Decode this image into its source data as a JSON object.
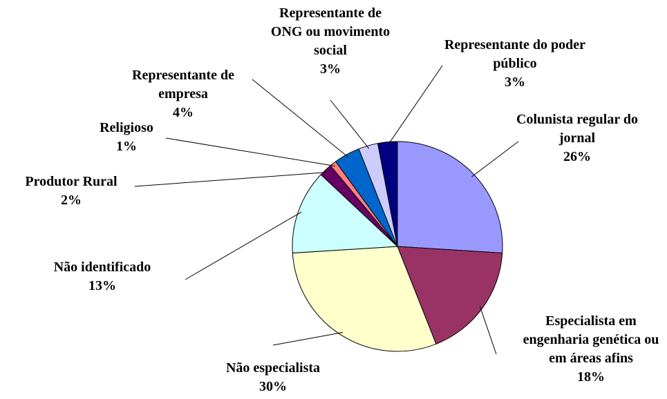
{
  "chart_data": {
    "type": "pie",
    "categories": [
      "Colunista regular do jornal",
      "Especialista em engenharia genética ou em áreas afins",
      "Não especialista",
      "Não identificado",
      "Produtor Rural",
      "Religioso",
      "Representante de empresa",
      "Representante de ONG ou movimento social",
      "Representante do poder público"
    ],
    "values": [
      26,
      18,
      30,
      13,
      2,
      1,
      4,
      3,
      3
    ],
    "value_labels": [
      "26%",
      "18%",
      "30%",
      "13%",
      "2%",
      "1%",
      "4%",
      "3%",
      "3%"
    ],
    "colors": [
      "#9999ff",
      "#993366",
      "#ffffcc",
      "#ccffff",
      "#660066",
      "#ff8080",
      "#0066cc",
      "#ccccff",
      "#000080"
    ]
  }
}
